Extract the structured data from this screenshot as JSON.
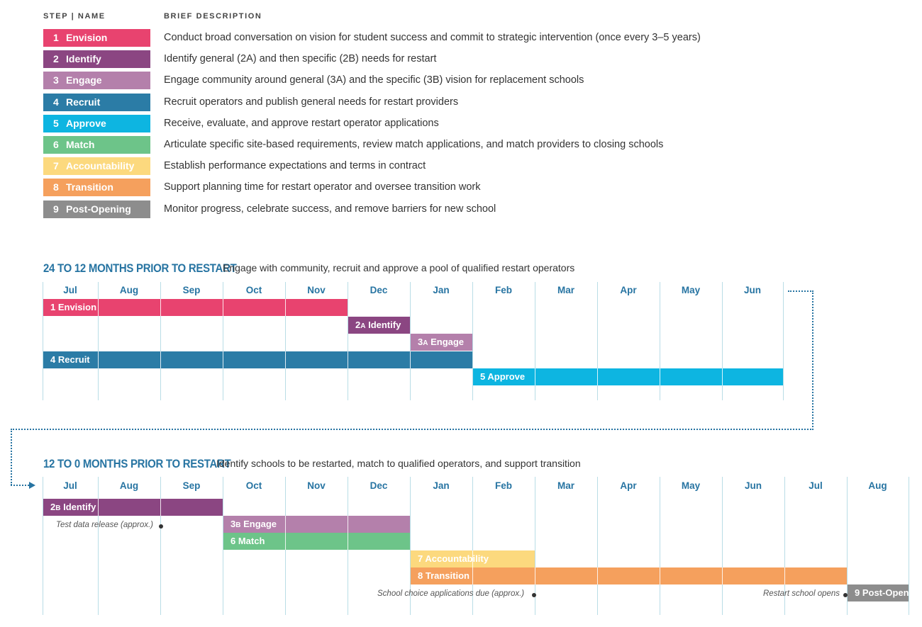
{
  "legend": {
    "header_step": "STEP | NAME",
    "header_desc": "BRIEF DESCRIPTION",
    "items": [
      {
        "num": "1",
        "name": "Envision",
        "color": "#e8436f",
        "description": "Conduct broad conversation on vision for student success and commit to strategic intervention (once every 3–5 years)"
      },
      {
        "num": "2",
        "name": "Identify",
        "color": "#8b4682",
        "description": "Identify general (2A) and then specific (2B) needs for restart"
      },
      {
        "num": "3",
        "name": "Engage",
        "color": "#b480ab",
        "description": "Engage community around general (3A) and the specific (3B) vision for replacement schools"
      },
      {
        "num": "4",
        "name": "Recruit",
        "color": "#2b7ca6",
        "description": "Recruit operators and publish general needs for restart providers"
      },
      {
        "num": "5",
        "name": "Approve",
        "color": "#0db5e1",
        "description": "Receive, evaluate, and approve restart operator applications"
      },
      {
        "num": "6",
        "name": "Match",
        "color": "#6dc489",
        "description": "Articulate specific site-based requirements, review match applications, and match providers to closing schools"
      },
      {
        "num": "7",
        "name": "Accountability",
        "color": "#fcd97e",
        "description": "Establish performance expectations and terms in contract"
      },
      {
        "num": "8",
        "name": "Transition",
        "color": "#f5a05d",
        "description": "Support planning time for restart operator and oversee transition work"
      },
      {
        "num": "9",
        "name": "Post-Opening",
        "color": "#8d8d8d",
        "description": "Monitor progress, celebrate success, and remove barriers for new school"
      }
    ]
  },
  "timeline1": {
    "title": "24 TO 12 MONTHS PRIOR TO RESTART",
    "subtitle": "Engage with community, recruit and approve a pool of qualified restart operators",
    "months": [
      "Jul",
      "Aug",
      "Sep",
      "Oct",
      "Nov",
      "Dec",
      "Jan",
      "Feb",
      "Mar",
      "Apr",
      "May",
      "Jun"
    ],
    "bars": [
      {
        "label": "1 Envision",
        "start": 0,
        "end": 5,
        "row": 0,
        "color": "#e8436f"
      },
      {
        "label": "2A Identify",
        "start": 5,
        "end": 6,
        "row": 1,
        "color": "#8b4682"
      },
      {
        "label": "3A Engage",
        "start": 6,
        "end": 7,
        "row": 2,
        "color": "#b480ab"
      },
      {
        "label": "4 Recruit",
        "start": 0,
        "end": 7,
        "row": 3,
        "color": "#2b7ca6"
      },
      {
        "label": "5 Approve",
        "start": 7,
        "end": 12,
        "row": 4,
        "color": "#0db5e1"
      }
    ]
  },
  "timeline2": {
    "title": "12 TO 0 MONTHS PRIOR TO RESTART",
    "subtitle": "Identify schools to be restarted, match to qualified operators, and support transition",
    "months": [
      "Jul",
      "Aug",
      "Sep",
      "Oct",
      "Nov",
      "Dec",
      "Jan",
      "Feb",
      "Mar",
      "Apr",
      "May",
      "Jun",
      "Jul",
      "Aug"
    ],
    "bars": [
      {
        "label": "2B Identify",
        "start": 0,
        "end": 3,
        "row": 0,
        "color": "#8b4682"
      },
      {
        "label": "3B Engage",
        "start": 3,
        "end": 6,
        "row": 1,
        "color": "#b480ab"
      },
      {
        "label": "6 Match",
        "start": 3,
        "end": 6,
        "row": 2,
        "color": "#6dc489"
      },
      {
        "label": "7 Accountability",
        "start": 6,
        "end": 8,
        "row": 3,
        "color": "#fcd97e"
      },
      {
        "label": "8 Transition",
        "start": 6,
        "end": 13,
        "row": 4,
        "color": "#f5a05d"
      },
      {
        "label": "9 Post-Open",
        "start": 13,
        "end": 14,
        "row": 5,
        "color": "#8d8d8d"
      }
    ],
    "notes": {
      "test_data": "Test data release (approx.)",
      "school_choice": "School choice applications due (approx.)",
      "restart_opens": "Restart school opens"
    }
  }
}
